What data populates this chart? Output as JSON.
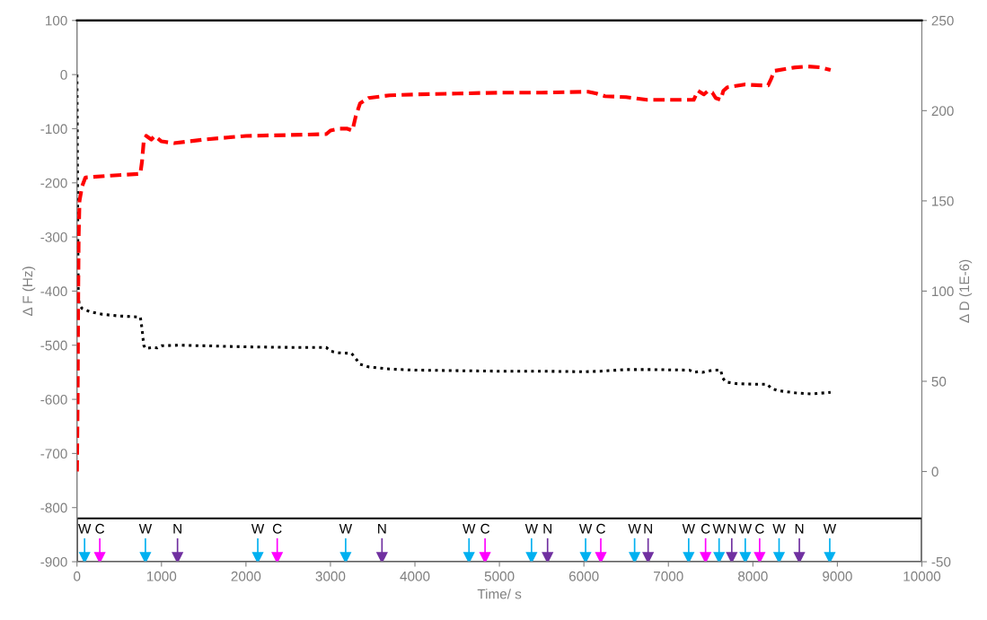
{
  "chart_data": {
    "type": "line",
    "xlabel": "Time/ s",
    "ylabel": "Δ F (Hz)",
    "y2label": "Δ D (1E-6)",
    "xlim": [
      0,
      10000
    ],
    "xticks": [
      0,
      1000,
      2000,
      3000,
      4000,
      5000,
      6000,
      7000,
      8000,
      9000,
      10000
    ],
    "ylim": [
      -900,
      100
    ],
    "yticks": [
      -900,
      -800,
      -700,
      -600,
      -500,
      -400,
      -300,
      -200,
      -100,
      0,
      100
    ],
    "y2lim": [
      -50,
      250
    ],
    "y2ticks": [
      -50,
      0,
      50,
      100,
      150,
      200,
      250
    ],
    "grid": false,
    "legend": false,
    "bands": [
      {
        "axis": "y",
        "from": -900,
        "to": -820,
        "color": "#ffffff"
      }
    ],
    "series": [
      {
        "color": "#000000",
        "line_style": "dotted",
        "x": [
          0,
          5,
          10,
          15,
          25,
          60,
          150,
          300,
          500,
          750,
          770,
          790,
          810,
          900,
          950,
          1000,
          1200,
          1500,
          2000,
          2500,
          2950,
          3000,
          3100,
          3250,
          3300,
          3350,
          3450,
          3700,
          4000,
          4500,
          5000,
          5500,
          6000,
          6200,
          6500,
          6800,
          7250,
          7300,
          7350,
          7400,
          7500,
          7550,
          7620,
          7640,
          7680,
          7800,
          8000,
          8170,
          8220,
          8300,
          8500,
          8700,
          8920
        ],
        "values": [
          0,
          -150,
          -300,
          -400,
          -425,
          -432,
          -438,
          -443,
          -446,
          -448,
          -470,
          -500,
          -506,
          -504,
          -505,
          -501,
          -500,
          -501,
          -503,
          -504,
          -504,
          -511,
          -514,
          -515,
          -525,
          -535,
          -540,
          -544,
          -546,
          -547,
          -548,
          -548,
          -549,
          -548,
          -545,
          -545,
          -546,
          -550,
          -549,
          -550,
          -547,
          -546,
          -546,
          -560,
          -568,
          -571,
          -572,
          -572,
          -580,
          -584,
          -588,
          -590,
          -587
        ]
      },
      {
        "color": "#ff0000",
        "line_style": "dashed",
        "axis": "y2",
        "x": [
          0,
          8,
          15,
          20,
          30,
          60,
          100,
          400,
          750,
          770,
          790,
          820,
          880,
          920,
          1000,
          1150,
          1500,
          2000,
          2500,
          2950,
          3000,
          3100,
          3200,
          3260,
          3300,
          3350,
          3450,
          3700,
          4000,
          4500,
          5000,
          5500,
          6050,
          6150,
          6250,
          6500,
          6750,
          7000,
          7300,
          7350,
          7420,
          7470,
          7520,
          7560,
          7620,
          7650,
          7700,
          7900,
          8100,
          8180,
          8220,
          8250,
          8500,
          8650,
          8800,
          8920
        ],
        "values": [
          0,
          40,
          100,
          130,
          150,
          158,
          163,
          164,
          165,
          172,
          183,
          186,
          184,
          186,
          183,
          182,
          184,
          186,
          186.5,
          187,
          189,
          190,
          190,
          189,
          197,
          204,
          207,
          208.5,
          209,
          209.5,
          210,
          210,
          210.5,
          209.5,
          208,
          207.5,
          206,
          206,
          206,
          211,
          209,
          211,
          210,
          207,
          206,
          211,
          213,
          214.5,
          214,
          214,
          218,
          222,
          224,
          224.5,
          224,
          222.5
        ]
      },
      {
        "name": "W",
        "type": "scatter",
        "marker": "triangle",
        "color": "#00b0f0",
        "x": [
          90,
          810,
          2140,
          3180,
          4640,
          5380,
          6020,
          6600,
          7240,
          7600,
          7910,
          8310,
          8910
        ],
        "values": [
          -893,
          -893,
          -893,
          -893,
          -893,
          -893,
          -893,
          -893,
          -893,
          -893,
          -893,
          -893,
          -893
        ]
      },
      {
        "name": "C",
        "type": "scatter",
        "marker": "triangle",
        "color": "#ff00ff",
        "x": [
          270,
          2370,
          4830,
          6200,
          7440,
          8080
        ],
        "values": [
          -893,
          -893,
          -893,
          -893,
          -893,
          -893
        ]
      },
      {
        "name": "N",
        "type": "scatter",
        "marker": "triangle",
        "color": "#7030a0",
        "x": [
          1190,
          3610,
          5570,
          6760,
          7750,
          8550
        ],
        "values": [
          -893,
          -893,
          -893,
          -893,
          -893,
          -893
        ]
      }
    ]
  }
}
